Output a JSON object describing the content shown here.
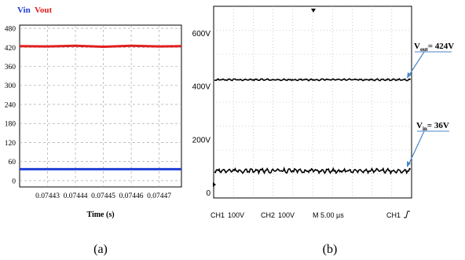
{
  "chart_data": [
    {
      "panel_label": "(a)",
      "type": "line",
      "legend": [
        "Vin",
        "Vout"
      ],
      "legend_placement": "top-left",
      "xlabel": "Time (s)",
      "ylabel": "",
      "xlim": [
        0.07442,
        0.074478
      ],
      "ylim": [
        -20,
        490
      ],
      "x_ticks": [
        "0.07443",
        "0.07444",
        "0.07445",
        "0.07446",
        "0.07447"
      ],
      "y_ticks": [
        "0",
        "60",
        "120",
        "180",
        "240",
        "300",
        "360",
        "420",
        "480"
      ],
      "grid": true,
      "series": [
        {
          "name": "Vin",
          "color": "#1f3fd6",
          "x": [
            0.07442,
            0.074478
          ],
          "y": [
            36,
            36
          ]
        },
        {
          "name": "Vout",
          "color": "#e02020",
          "x": [
            0.07442,
            0.07443,
            0.07444,
            0.07445,
            0.07446,
            0.07447,
            0.074478
          ],
          "y": [
            424,
            423,
            425,
            422,
            425,
            423,
            424
          ]
        }
      ]
    },
    {
      "panel_label": "(b)",
      "type": "line",
      "y_ticks": [
        "600V",
        "400V",
        "200V",
        "0"
      ],
      "ylim": [
        -20,
        700
      ],
      "grid": true,
      "bottom_readout": [
        "CH1",
        "100V",
        "CH2",
        "100V",
        "M 5.00 µs",
        "CH1"
      ],
      "annotations": [
        {
          "name": "Vout",
          "text_main": "V",
          "text_sub": "out",
          "text_value": "= 424V"
        },
        {
          "name": "Vin",
          "text_main": "V",
          "text_sub": "in",
          "text_value": "= 36V"
        }
      ],
      "series": [
        {
          "name": "Vout",
          "value": 424
        },
        {
          "name": "Vin",
          "value": 36
        }
      ]
    }
  ],
  "colors": {
    "vin": "#1f3fd6",
    "vout": "#e02020",
    "scope_trace": "#000000",
    "arrow": "#4a86c8"
  }
}
